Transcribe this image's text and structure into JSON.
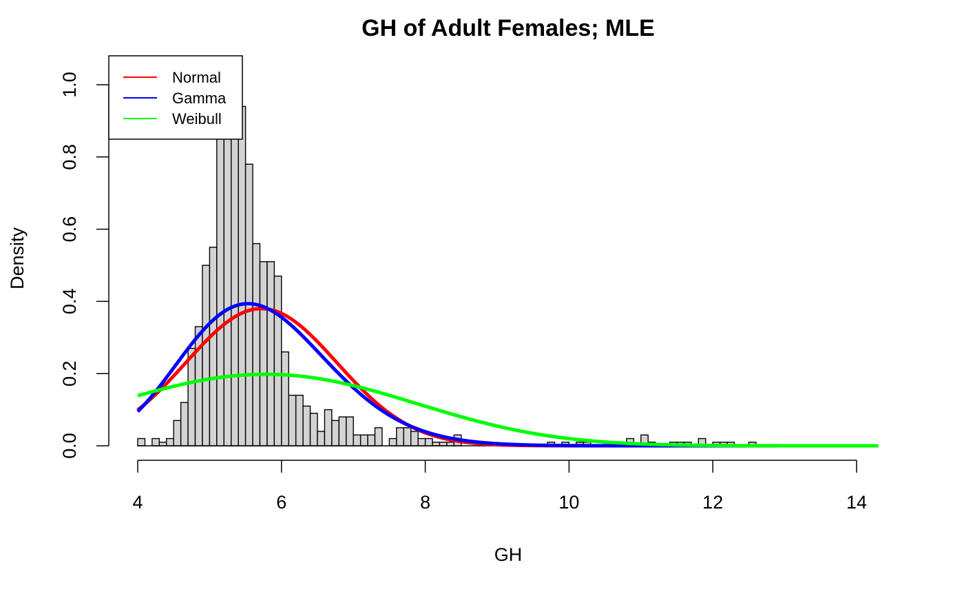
{
  "chart_data": {
    "type": "histogram",
    "title": "GH of Adult Females; MLE",
    "xlabel": "GH",
    "ylabel": "Density",
    "xlim": [
      4,
      14.3
    ],
    "ylim": [
      0,
      1.04
    ],
    "x_ticks": [
      "4",
      "6",
      "8",
      "10",
      "12",
      "14"
    ],
    "y_ticks": [
      "0.0",
      "0.2",
      "0.4",
      "0.6",
      "0.8",
      "1.0"
    ],
    "bin_width": 0.1,
    "bin_start": 4.0,
    "bar_color": "#d3d3d3",
    "bars": [
      0.02,
      0.0,
      0.02,
      0.01,
      0.02,
      0.07,
      0.12,
      0.27,
      0.33,
      0.5,
      0.55,
      0.89,
      0.97,
      1.04,
      0.94,
      0.78,
      0.56,
      0.51,
      0.51,
      0.47,
      0.26,
      0.14,
      0.14,
      0.11,
      0.09,
      0.04,
      0.1,
      0.07,
      0.08,
      0.08,
      0.03,
      0.03,
      0.03,
      0.05,
      0.0,
      0.02,
      0.05,
      0.05,
      0.04,
      0.02,
      0.02,
      0.01,
      0.01,
      0.01,
      0.03,
      0.0,
      0.0,
      0.0,
      0.0,
      0.0,
      0.0,
      0.0,
      0.0,
      0.0,
      0.0,
      0.0,
      0.0,
      0.01,
      0.0,
      0.01,
      0.0,
      0.01,
      0.01,
      0.0,
      0.0,
      0.01,
      0.01,
      0.01,
      0.02,
      0.0,
      0.03,
      0.01,
      0.0,
      0.0,
      0.01,
      0.01,
      0.01,
      0.0,
      0.02,
      0.0,
      0.01,
      0.01,
      0.01,
      0.0,
      0.0,
      0.01,
      0.0,
      0.0,
      0.0,
      0.0,
      0.0,
      0.0,
      0.0,
      0.0,
      0.0,
      0.0,
      0.0,
      0.0,
      0.0,
      0.0,
      0.0,
      0.0,
      0.0
    ],
    "series": [
      {
        "name": "Normal",
        "color": "#ff0000",
        "dist": "normal",
        "params": {
          "mean": 5.72,
          "sd": 1.05
        }
      },
      {
        "name": "Gamma",
        "color": "#0000ff",
        "dist": "gamma",
        "params": {
          "shape": 31.0,
          "rate": 5.42
        }
      },
      {
        "name": "Weibull",
        "color": "#00ff00",
        "dist": "weibull",
        "params": {
          "shape": 3.3,
          "scale": 6.45
        }
      }
    ],
    "legend_position": "top-left"
  }
}
